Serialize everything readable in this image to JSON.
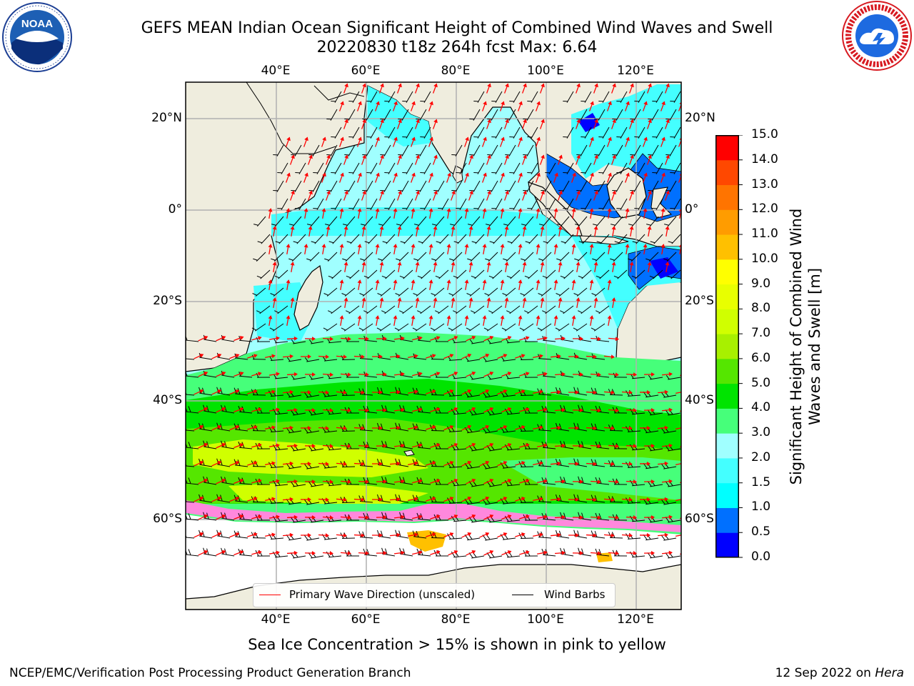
{
  "header": {
    "title_line1": "GEFS MEAN Indian Ocean Significant Height of Combined Wind Waves and Swell",
    "title_line2": "20220830 t18z 264h fcst   Max: 6.64"
  },
  "logos": {
    "noaa": {
      "text": "NOAA",
      "ring_text": "NATIONAL OCEANIC AND ATMOSPHERIC ADMINISTRATION · U.S. DEPARTMENT OF COMMERCE"
    },
    "nws": {
      "ring_text": "NATIONAL WEATHER SERVICE"
    }
  },
  "map": {
    "lon_ticks": [
      "40°E",
      "60°E",
      "80°E",
      "100°E",
      "120°E"
    ],
    "lat_ticks": [
      "20°N",
      "0°",
      "20°S",
      "40°S",
      "60°S"
    ],
    "colors": {
      "land": "#efedde",
      "ice": "#ffffff",
      "grid": "#b0b0b0",
      "wave_arrow": "#ff0000",
      "wind_barb": "#000000"
    }
  },
  "legend": {
    "wave_label": "Primary Wave Direction (unscaled)",
    "wind_label": "Wind Barbs"
  },
  "colorbar": {
    "label": "Significant Height of Combined Wind Waves and Swell [m]",
    "ticks": [
      "0.0",
      "0.5",
      "1.0",
      "1.5",
      "2.0",
      "3.0",
      "4.0",
      "5.0",
      "6.0",
      "7.0",
      "8.0",
      "9.0",
      "10.0",
      "11.0",
      "12.0",
      "13.0",
      "14.0",
      "15.0"
    ],
    "colors": [
      "#0000ff",
      "#0070ff",
      "#00ffff",
      "#44ffff",
      "#a0ffff",
      "#46ff7a",
      "#00e400",
      "#55e600",
      "#a8f000",
      "#d0ff00",
      "#e8ff00",
      "#ffff00",
      "#ffc000",
      "#ff9c00",
      "#ff7400",
      "#ff4800",
      "#ff0000"
    ]
  },
  "caption": "Sea Ice Concentration > 15% is shown in pink to yellow",
  "footer": {
    "left": "NCEP/EMC/Verification Post Processing Product Generation Branch",
    "right_date": "12 Sep 2022 on ",
    "right_host": "Hera"
  }
}
